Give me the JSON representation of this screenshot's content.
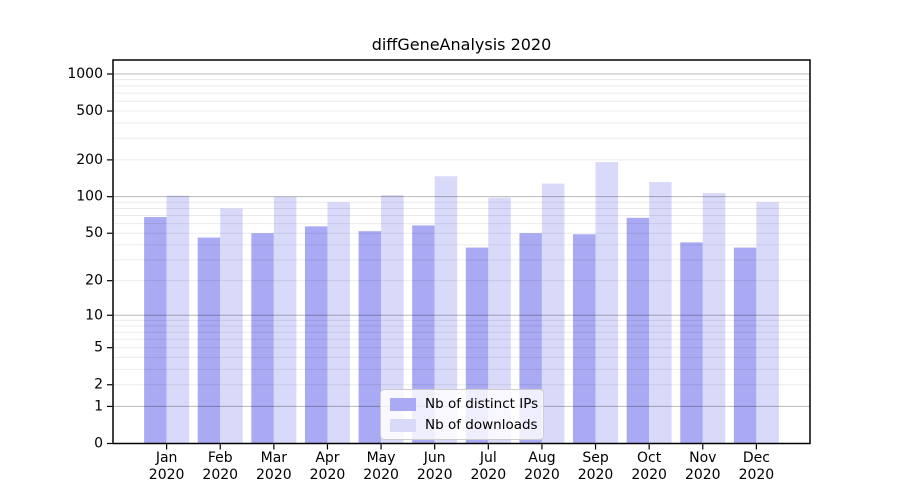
{
  "figure": {
    "title": "diffGeneAnalysis 2020",
    "background": "#ffffff"
  },
  "legend": {
    "items": [
      {
        "label": "Nb of distinct IPs",
        "color": "#a9a9f4"
      },
      {
        "label": "Nb of downloads",
        "color": "#d9d9fa"
      }
    ]
  },
  "chart_data": {
    "type": "bar",
    "title": "diffGeneAnalysis 2020",
    "xlabel": "",
    "ylabel": "",
    "x_tick_months": [
      "Jan",
      "Feb",
      "Mar",
      "Apr",
      "May",
      "Jun",
      "Jul",
      "Aug",
      "Sep",
      "Oct",
      "Nov",
      "Dec"
    ],
    "x_tick_year": "2020",
    "y_ticks": [
      0,
      1,
      2,
      5,
      10,
      20,
      50,
      100,
      200,
      500,
      1000
    ],
    "y_scale": "log1p",
    "ylim": [
      0,
      1300
    ],
    "grid": "on",
    "legend_position": "lower center",
    "series": [
      {
        "name": "Nb of distinct IPs",
        "color": "#a9a9f4",
        "values": [
          68,
          46,
          50,
          57,
          52,
          58,
          38,
          50,
          49,
          67,
          42,
          38
        ]
      },
      {
        "name": "Nb of downloads",
        "color": "#d9d9fa",
        "values": [
          102,
          80,
          100,
          90,
          103,
          147,
          98,
          128,
          192,
          132,
          107,
          90
        ]
      }
    ],
    "major_grid_values": [
      1,
      10,
      100,
      1000
    ],
    "minor_grid_values": [
      2,
      3,
      4,
      5,
      6,
      7,
      8,
      9,
      20,
      30,
      40,
      50,
      60,
      70,
      80,
      90,
      200,
      300,
      400,
      500,
      600,
      700,
      800,
      900
    ],
    "colors": {
      "major_grid": "rgba(0,0,0,0.28)",
      "minor_grid": "rgba(0,0,0,0.08)",
      "spine": "#000000",
      "tick_text": "#000000"
    }
  }
}
